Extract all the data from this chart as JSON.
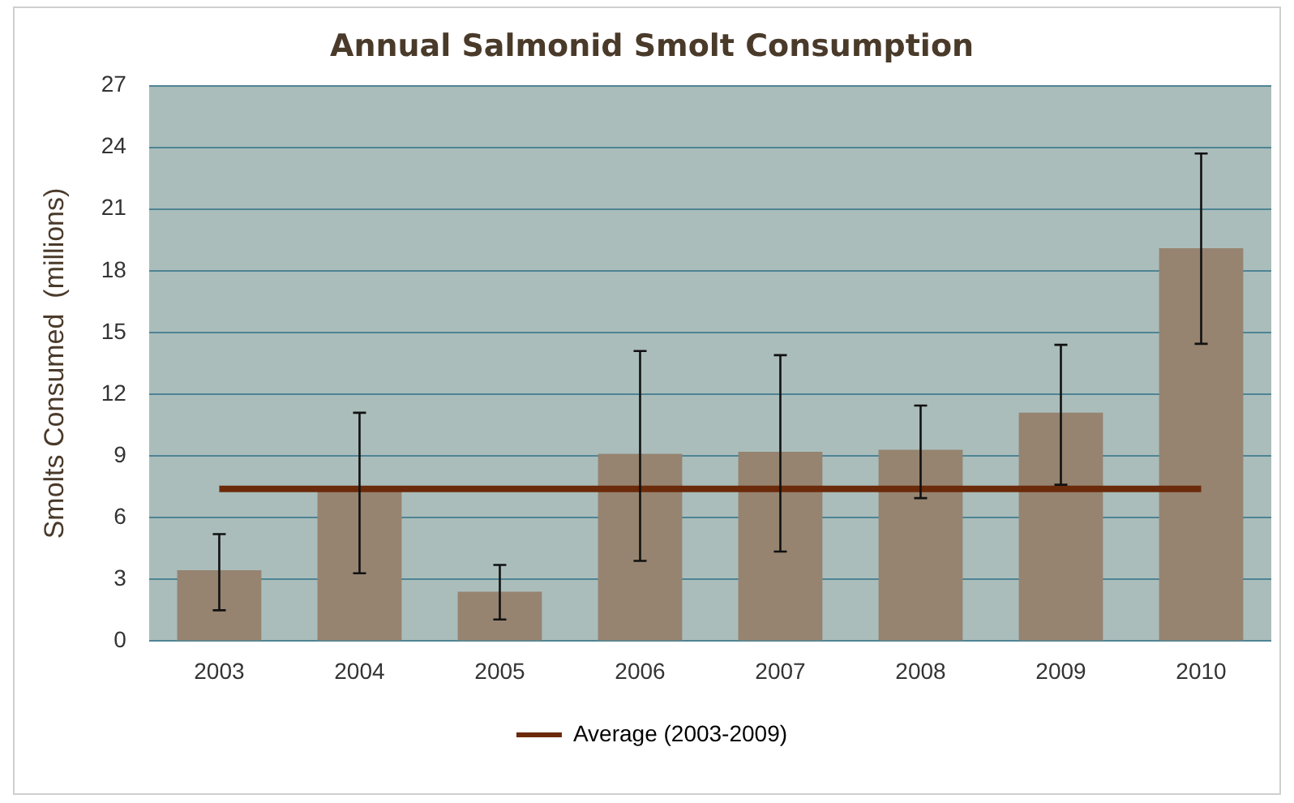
{
  "chart_data": {
    "type": "bar",
    "title": "Annual Salmonid Smolt Consumption",
    "ylabel": "Smolts Consumed  (millions)",
    "categories": [
      "2003",
      "2004",
      "2005",
      "2006",
      "2007",
      "2008",
      "2009",
      "2010"
    ],
    "series": [
      {
        "color": "#968470",
        "values": [
          3.45,
          7.35,
          2.4,
          9.1,
          9.2,
          9.3,
          11.1,
          19.1
        ],
        "errors": [
          [
            1.5,
            5.2
          ],
          [
            3.3,
            11.1
          ],
          [
            1.05,
            3.7
          ],
          [
            3.9,
            14.1
          ],
          [
            4.35,
            13.9
          ],
          [
            6.95,
            11.45
          ],
          [
            7.6,
            14.4
          ],
          [
            14.45,
            23.7
          ]
        ]
      },
      {
        "type": "line",
        "name": "Average (2003-2009)",
        "color": "#6b2a0a",
        "values": [
          7.4,
          7.4,
          7.4,
          7.4,
          7.4,
          7.4,
          7.4,
          7.4
        ]
      }
    ],
    "ylim": [
      0,
      27
    ],
    "yticks": [
      0,
      3,
      6,
      9,
      12,
      15,
      18,
      21,
      24,
      27
    ],
    "grid": "y",
    "legend": "bottom",
    "marker": "none"
  }
}
